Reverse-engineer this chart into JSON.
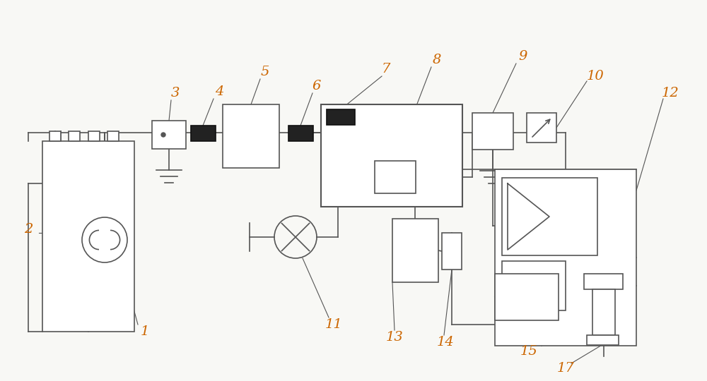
{
  "bg_color": "#f8f8f5",
  "line_color": "#555555",
  "label_color": "#cc6600",
  "fig_width": 10.0,
  "fig_height": 5.4
}
